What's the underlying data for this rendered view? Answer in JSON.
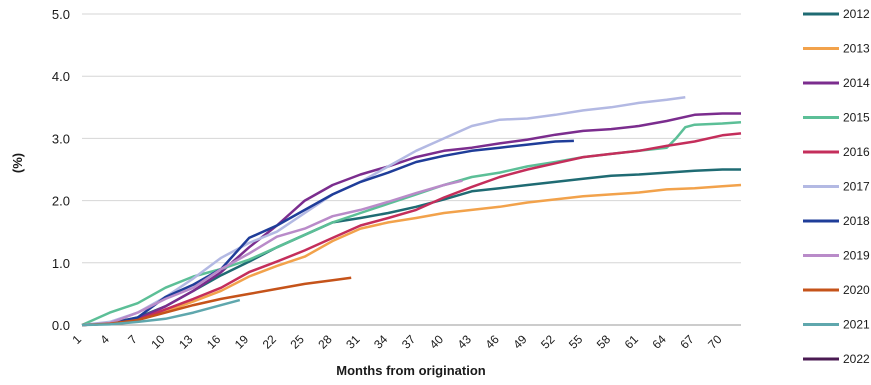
{
  "chart_data": {
    "type": "line",
    "xlabel": "Months from origination",
    "ylabel": "(%)",
    "ylim": [
      0,
      5
    ],
    "xlim": [
      1,
      72
    ],
    "yticks": [
      "0.0",
      "1.0",
      "2.0",
      "3.0",
      "4.0",
      "5.0"
    ],
    "xticks": [
      "1",
      "4",
      "7",
      "10",
      "13",
      "16",
      "19",
      "22",
      "25",
      "28",
      "31",
      "34",
      "37",
      "40",
      "43",
      "46",
      "49",
      "52",
      "55",
      "58",
      "61",
      "64",
      "67",
      "70"
    ],
    "grid": "horizontal",
    "legend_position": "right",
    "series": [
      {
        "name": "2012",
        "color": "#1f6b73",
        "x": [
          1,
          4,
          7,
          10,
          13,
          16,
          19,
          22,
          25,
          28,
          31,
          34,
          37,
          40,
          43,
          46,
          49,
          52,
          55,
          58,
          61,
          64,
          67,
          70,
          72
        ],
        "values": [
          0,
          0.03,
          0.12,
          0.3,
          0.55,
          0.8,
          1.02,
          1.25,
          1.45,
          1.65,
          1.72,
          1.8,
          1.9,
          2.02,
          2.15,
          2.2,
          2.25,
          2.3,
          2.35,
          2.4,
          2.42,
          2.45,
          2.48,
          2.5,
          2.5
        ]
      },
      {
        "name": "2013",
        "color": "#f2a24b",
        "x": [
          1,
          4,
          7,
          10,
          13,
          16,
          19,
          22,
          25,
          28,
          31,
          34,
          37,
          40,
          43,
          46,
          49,
          52,
          55,
          58,
          61,
          64,
          67,
          70,
          72
        ],
        "values": [
          0,
          0.02,
          0.08,
          0.22,
          0.38,
          0.55,
          0.78,
          0.95,
          1.1,
          1.35,
          1.55,
          1.65,
          1.72,
          1.8,
          1.85,
          1.9,
          1.97,
          2.02,
          2.07,
          2.1,
          2.13,
          2.18,
          2.2,
          2.23,
          2.25
        ]
      },
      {
        "name": "2014",
        "color": "#7b2d8e",
        "x": [
          1,
          4,
          7,
          10,
          13,
          16,
          19,
          22,
          25,
          28,
          31,
          34,
          37,
          40,
          43,
          46,
          49,
          52,
          55,
          58,
          61,
          64,
          67,
          70,
          72
        ],
        "values": [
          0,
          0.02,
          0.1,
          0.3,
          0.55,
          0.85,
          1.25,
          1.6,
          2.0,
          2.25,
          2.42,
          2.55,
          2.7,
          2.8,
          2.85,
          2.92,
          2.98,
          3.06,
          3.12,
          3.15,
          3.2,
          3.28,
          3.38,
          3.4,
          3.4
        ]
      },
      {
        "name": "2015",
        "color": "#5cbf97",
        "x": [
          1,
          4,
          7,
          10,
          13,
          16,
          19,
          22,
          25,
          28,
          31,
          34,
          37,
          40,
          43,
          46,
          49,
          52,
          55,
          58,
          61,
          64,
          65,
          66,
          67,
          70,
          72
        ],
        "values": [
          0,
          0.2,
          0.35,
          0.6,
          0.78,
          0.9,
          1.05,
          1.25,
          1.45,
          1.65,
          1.8,
          1.95,
          2.1,
          2.25,
          2.38,
          2.45,
          2.55,
          2.62,
          2.7,
          2.75,
          2.8,
          2.85,
          3.0,
          3.18,
          3.22,
          3.24,
          3.26
        ]
      },
      {
        "name": "2016",
        "color": "#c42e5b",
        "x": [
          1,
          4,
          7,
          10,
          13,
          16,
          19,
          22,
          25,
          28,
          31,
          34,
          37,
          40,
          43,
          46,
          49,
          52,
          55,
          58,
          61,
          64,
          67,
          70,
          72
        ],
        "values": [
          0,
          0.02,
          0.08,
          0.25,
          0.42,
          0.6,
          0.85,
          1.02,
          1.2,
          1.4,
          1.6,
          1.72,
          1.85,
          2.05,
          2.22,
          2.38,
          2.5,
          2.6,
          2.7,
          2.75,
          2.8,
          2.88,
          2.95,
          3.05,
          3.08
        ]
      },
      {
        "name": "2017",
        "color": "#b3b9e3",
        "x": [
          1,
          4,
          7,
          10,
          13,
          16,
          19,
          22,
          25,
          28,
          31,
          34,
          37,
          40,
          43,
          46,
          49,
          52,
          55,
          58,
          61,
          64,
          66
        ],
        "values": [
          0,
          0.05,
          0.2,
          0.45,
          0.75,
          1.08,
          1.32,
          1.5,
          1.8,
          2.1,
          2.3,
          2.55,
          2.8,
          3.0,
          3.2,
          3.3,
          3.32,
          3.38,
          3.45,
          3.5,
          3.57,
          3.62,
          3.66
        ]
      },
      {
        "name": "2018",
        "color": "#1f3d99",
        "x": [
          1,
          4,
          7,
          10,
          13,
          16,
          19,
          22,
          25,
          28,
          31,
          34,
          37,
          40,
          43,
          46,
          49,
          52,
          54
        ],
        "values": [
          0,
          0.02,
          0.12,
          0.45,
          0.65,
          0.9,
          1.4,
          1.6,
          1.85,
          2.1,
          2.3,
          2.45,
          2.62,
          2.72,
          2.8,
          2.85,
          2.9,
          2.95,
          2.96
        ]
      },
      {
        "name": "2019",
        "color": "#b98bc9",
        "x": [
          1,
          4,
          7,
          10,
          13,
          16,
          19,
          22,
          25,
          28,
          31,
          34,
          37,
          40,
          42
        ],
        "values": [
          0,
          0.03,
          0.2,
          0.42,
          0.6,
          0.9,
          1.15,
          1.42,
          1.55,
          1.75,
          1.85,
          1.98,
          2.12,
          2.25,
          2.32
        ]
      },
      {
        "name": "2020",
        "color": "#c5531a",
        "x": [
          1,
          4,
          7,
          10,
          13,
          16,
          19,
          22,
          25,
          28,
          30
        ],
        "values": [
          0,
          0.02,
          0.08,
          0.2,
          0.32,
          0.42,
          0.5,
          0.58,
          0.66,
          0.72,
          0.76
        ]
      },
      {
        "name": "2021",
        "color": "#5fa7ad",
        "x": [
          1,
          4,
          7,
          10,
          13,
          16,
          18
        ],
        "values": [
          0,
          0.01,
          0.05,
          0.1,
          0.2,
          0.32,
          0.4
        ]
      },
      {
        "name": "2022",
        "color": "#4a1a52",
        "x": [],
        "values": []
      }
    ]
  }
}
